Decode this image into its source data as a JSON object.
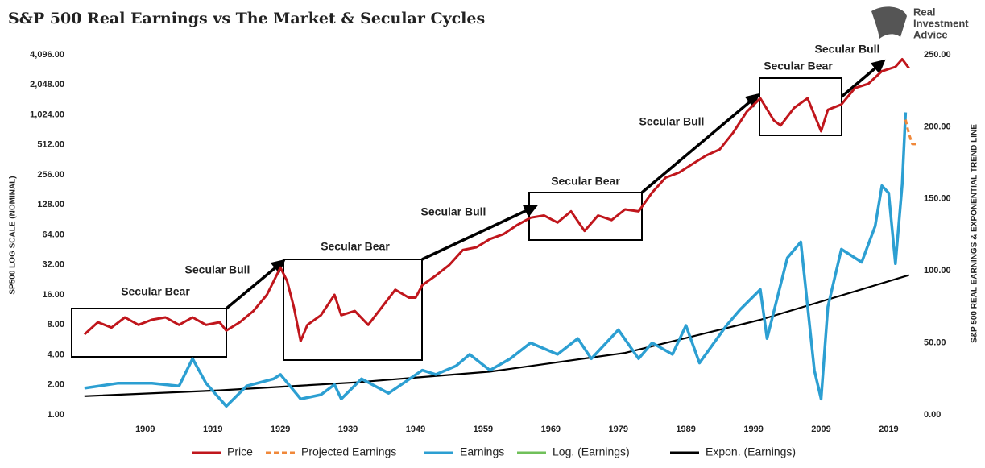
{
  "chart_data": {
    "type": "line",
    "title": "S&P 500 Real Earnings vs The Market & Secular Cycles",
    "brand": [
      "Real",
      "Investment",
      "Advice"
    ],
    "ylabel": "SP500 LOG SCALE (NOMINAL)",
    "y2label": "S&P 500 REAL EARNINGS & EXPONENTIAL TREND LINE",
    "log_y": true,
    "grid": false,
    "legend": "bottom",
    "xlim": [
      1898,
      2023
    ],
    "xticks": [
      1909,
      1919,
      1929,
      1939,
      1949,
      1959,
      1969,
      1979,
      1989,
      1999,
      2009,
      2019
    ],
    "ylim": [
      1,
      4096
    ],
    "yticks": [
      {
        "value": 1,
        "label": "1.00"
      },
      {
        "value": 2,
        "label": "2.00"
      },
      {
        "value": 4,
        "label": "4.00"
      },
      {
        "value": 8,
        "label": "8.00"
      },
      {
        "value": 16,
        "label": "16.00"
      },
      {
        "value": 32,
        "label": "32.00"
      },
      {
        "value": 64,
        "label": "64.00"
      },
      {
        "value": 128,
        "label": "128.00"
      },
      {
        "value": 256,
        "label": "256.00"
      },
      {
        "value": 512,
        "label": "512.00"
      },
      {
        "value": 1024,
        "label": "1,024.00"
      },
      {
        "value": 2048,
        "label": "2,048.00"
      },
      {
        "value": 4096,
        "label": "4,096.00"
      }
    ],
    "y2lim": [
      0,
      250
    ],
    "y2ticks": [
      {
        "value": 0,
        "label": "0.00"
      },
      {
        "value": 50,
        "label": "50.00"
      },
      {
        "value": 100,
        "label": "100.00"
      },
      {
        "value": 150,
        "label": "150.00"
      },
      {
        "value": 200,
        "label": "200.00"
      },
      {
        "value": 250,
        "label": "250.00"
      }
    ],
    "series": [
      {
        "name": "Price",
        "color": "#c0161c",
        "width": 3,
        "x": [
          1900,
          1902,
          1904,
          1906,
          1908,
          1910,
          1912,
          1914,
          1916,
          1918,
          1920,
          1921,
          1923,
          1925,
          1927,
          1929,
          1930,
          1931,
          1932,
          1933,
          1935,
          1937,
          1938,
          1940,
          1942,
          1944,
          1946,
          1948,
          1949,
          1950,
          1952,
          1954,
          1956,
          1958,
          1960,
          1962,
          1964,
          1966,
          1968,
          1970,
          1972,
          1974,
          1976,
          1978,
          1980,
          1982,
          1984,
          1986,
          1988,
          1990,
          1992,
          1994,
          1996,
          1998,
          2000,
          2002,
          2003,
          2005,
          2007,
          2009,
          2010,
          2012,
          2014,
          2016,
          2018,
          2020,
          2021,
          2022
        ],
        "values": [
          6.4,
          8.5,
          7.5,
          9.5,
          8,
          9,
          9.5,
          8,
          9.5,
          8,
          8.5,
          7,
          8.5,
          11,
          16,
          30,
          22,
          12,
          5.5,
          8,
          10,
          16,
          10,
          11,
          8,
          12,
          18,
          15,
          15,
          20,
          25,
          32,
          45,
          48,
          58,
          65,
          80,
          95,
          100,
          85,
          110,
          70,
          100,
          90,
          115,
          110,
          170,
          240,
          270,
          330,
          400,
          460,
          680,
          1100,
          1500,
          900,
          800,
          1200,
          1500,
          700,
          1150,
          1300,
          1900,
          2100,
          2800,
          3100,
          3700,
          3000
        ]
      },
      {
        "name": "Projected Earnings",
        "color": "#f0883a",
        "axis": "y2",
        "dashed": true,
        "width": 3,
        "x": [
          2021.5,
          2022,
          2022.5,
          2023
        ],
        "values": [
          205,
          195,
          188,
          188
        ]
      },
      {
        "name": "Earnings",
        "color": "#2c9fd2",
        "axis": "y2",
        "width": 3.5,
        "x": [
          1900,
          1905,
          1910,
          1914,
          1916,
          1918,
          1921,
          1924,
          1928,
          1929,
          1932,
          1935,
          1937,
          1938,
          1941,
          1945,
          1950,
          1952,
          1955,
          1957,
          1960,
          1963,
          1966,
          1970,
          1973,
          1975,
          1979,
          1982,
          1984,
          1987,
          1989,
          1991,
          1995,
          1997,
          2000,
          2001,
          2004,
          2006,
          2008,
          2009,
          2010,
          2012,
          2014,
          2015,
          2017,
          2018,
          2019,
          2020,
          2021,
          2021.5
        ],
        "values": [
          18.5,
          22,
          22,
          20,
          39,
          22,
          6,
          20,
          25,
          28,
          11,
          14,
          21,
          11,
          25,
          15,
          31,
          28,
          34,
          42,
          31,
          39,
          50,
          42,
          53,
          39,
          59,
          39,
          50,
          42,
          62,
          36,
          62,
          73,
          87,
          53,
          109,
          120,
          31,
          11,
          75,
          115,
          109,
          106,
          131,
          159,
          154,
          105,
          160,
          210
        ]
      },
      {
        "name": "Log. (Earnings)",
        "color": "#70c05a",
        "axis": "y2",
        "width": 2,
        "x": [],
        "values": []
      },
      {
        "name": "Expon. (Earnings)",
        "color": "#000000",
        "axis": "y2",
        "width": 2.2,
        "x": [
          1900,
          1920,
          1940,
          1960,
          1980,
          2000,
          2022
        ],
        "values": [
          13,
          17,
          22.5,
          30,
          43,
          66,
          97
        ]
      }
    ],
    "annotations": [
      "Secular Bear",
      "Secular Bull",
      "Secular Bear",
      "Secular Bull",
      "Secular Bear",
      "Secular Bull",
      "Secular Bear",
      "Secular Bull"
    ]
  }
}
